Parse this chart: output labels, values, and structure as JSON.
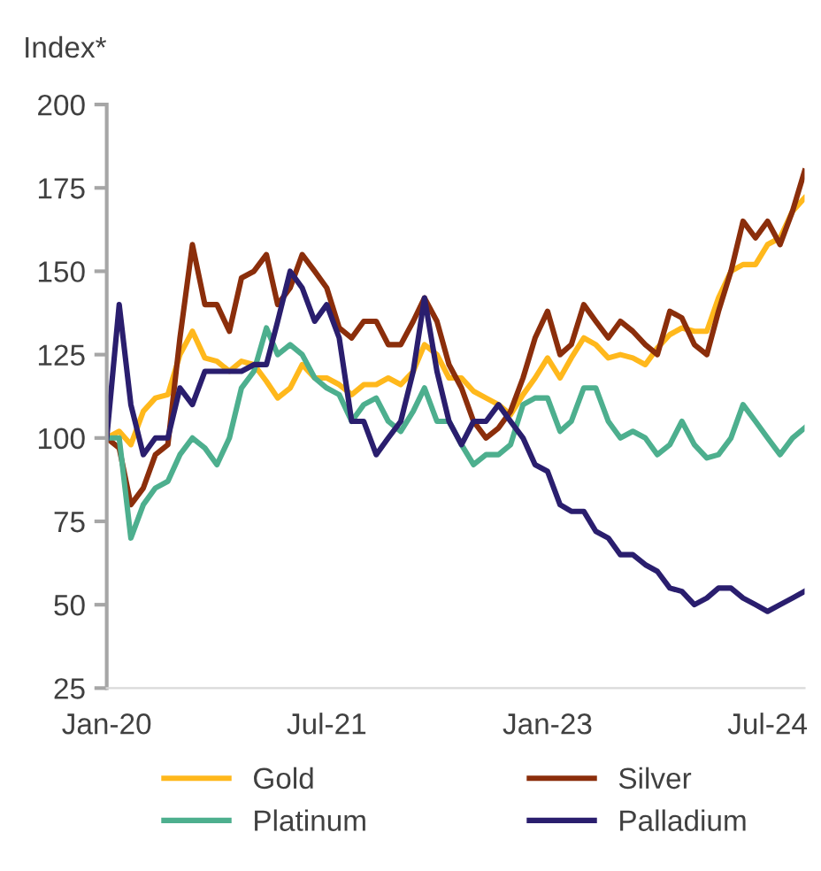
{
  "chart_data": {
    "type": "line",
    "ylabel": "Index*",
    "x": [
      "2020-01",
      "2020-02",
      "2020-03",
      "2020-04",
      "2020-05",
      "2020-06",
      "2020-07",
      "2020-08",
      "2020-09",
      "2020-10",
      "2020-11",
      "2020-12",
      "2021-01",
      "2021-02",
      "2021-03",
      "2021-04",
      "2021-05",
      "2021-06",
      "2021-07",
      "2021-08",
      "2021-09",
      "2021-10",
      "2021-11",
      "2021-12",
      "2022-01",
      "2022-02",
      "2022-03",
      "2022-04",
      "2022-05",
      "2022-06",
      "2022-07",
      "2022-08",
      "2022-09",
      "2022-10",
      "2022-11",
      "2022-12",
      "2023-01",
      "2023-02",
      "2023-03",
      "2023-04",
      "2023-05",
      "2023-06",
      "2023-07",
      "2023-08",
      "2023-09",
      "2023-10",
      "2023-11",
      "2023-12",
      "2024-01",
      "2024-02",
      "2024-03",
      "2024-04",
      "2024-05",
      "2024-06",
      "2024-07",
      "2024-08",
      "2024-09",
      "2024-10"
    ],
    "series": [
      {
        "name": "Gold",
        "color": "#ffb81c",
        "values": [
          100,
          102,
          98,
          108,
          112,
          113,
          125,
          132,
          124,
          123,
          120,
          123,
          122,
          117,
          112,
          115,
          122,
          118,
          118,
          116,
          113,
          116,
          116,
          118,
          116,
          120,
          128,
          125,
          118,
          118,
          114,
          112,
          110,
          107,
          113,
          118,
          124,
          118,
          124,
          130,
          128,
          124,
          125,
          124,
          122,
          127,
          131,
          133,
          132,
          132,
          142,
          150,
          152,
          152,
          158,
          160,
          168,
          172
        ]
      },
      {
        "name": "Silver",
        "color": "#8b2e0b",
        "values": [
          100,
          97,
          80,
          85,
          95,
          98,
          130,
          158,
          140,
          140,
          132,
          148,
          150,
          155,
          140,
          145,
          155,
          150,
          145,
          133,
          130,
          135,
          135,
          128,
          128,
          135,
          142,
          135,
          122,
          115,
          105,
          100,
          103,
          108,
          118,
          130,
          138,
          125,
          128,
          140,
          135,
          130,
          135,
          132,
          128,
          125,
          138,
          136,
          128,
          125,
          138,
          150,
          165,
          160,
          165,
          158,
          168,
          180
        ]
      },
      {
        "name": "Platinum",
        "color": "#4daf8e",
        "values": [
          100,
          100,
          70,
          80,
          85,
          87,
          95,
          100,
          97,
          92,
          100,
          115,
          120,
          133,
          125,
          128,
          125,
          118,
          115,
          113,
          105,
          110,
          112,
          105,
          102,
          108,
          115,
          105,
          105,
          98,
          92,
          95,
          95,
          98,
          110,
          112,
          112,
          102,
          105,
          115,
          115,
          105,
          100,
          102,
          100,
          95,
          98,
          105,
          98,
          94,
          95,
          100,
          110,
          105,
          100,
          95,
          100,
          103
        ]
      },
      {
        "name": "Palladium",
        "color": "#2a1e6e",
        "values": [
          100,
          140,
          110,
          95,
          100,
          100,
          115,
          110,
          120,
          120,
          120,
          120,
          122,
          122,
          135,
          150,
          145,
          135,
          140,
          130,
          105,
          105,
          95,
          100,
          105,
          120,
          142,
          120,
          105,
          98,
          105,
          105,
          110,
          105,
          100,
          92,
          90,
          80,
          78,
          78,
          72,
          70,
          65,
          65,
          62,
          60,
          55,
          54,
          50,
          52,
          55,
          55,
          52,
          50,
          48,
          50,
          52,
          54
        ]
      }
    ],
    "xlim": [
      "2020-01",
      "2024-10"
    ],
    "xticks": [
      {
        "value": "2020-01",
        "label": "Jan-20"
      },
      {
        "value": "2021-07",
        "label": "Jul-21"
      },
      {
        "value": "2023-01",
        "label": "Jan-23"
      },
      {
        "value": "2024-07",
        "label": "Jul-24"
      }
    ],
    "ylim": [
      25,
      200
    ],
    "yticks": [
      25,
      50,
      75,
      100,
      125,
      150,
      175,
      200
    ],
    "grid": false,
    "legend": "bottom",
    "marker": "none",
    "line_style": "solid"
  }
}
